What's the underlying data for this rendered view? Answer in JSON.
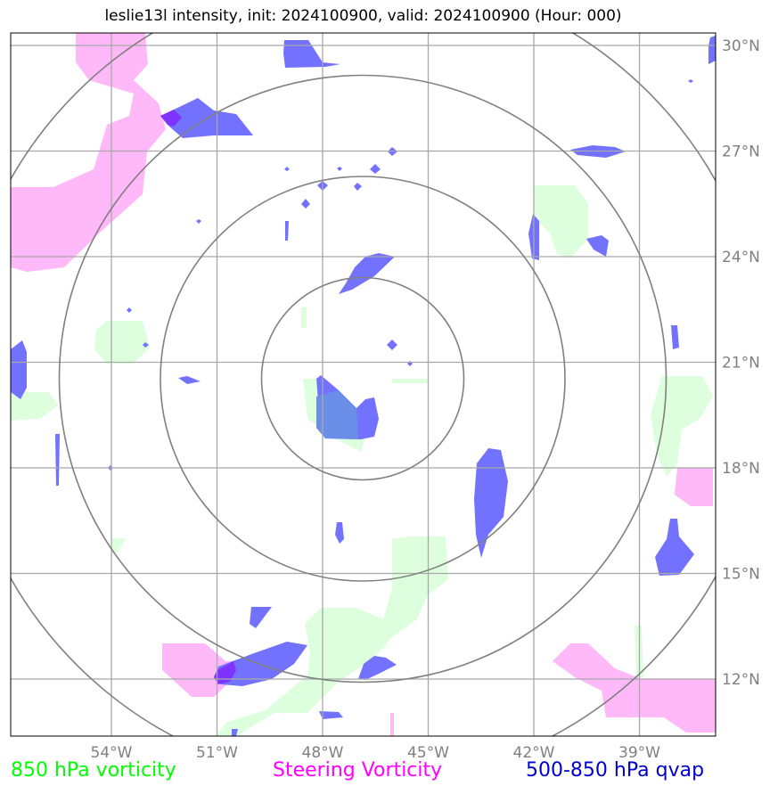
{
  "title": "leslie13l intensity, init: 2024100900, valid: 2024100900 (Hour: 000)",
  "map": {
    "lon_ticks": [
      {
        "lon": -54,
        "label": "54°W"
      },
      {
        "lon": -51,
        "label": "51°W"
      },
      {
        "lon": -48,
        "label": "48°W"
      },
      {
        "lon": -45,
        "label": "45°W"
      },
      {
        "lon": -42,
        "label": "42°W"
      },
      {
        "lon": -39,
        "label": "39°W"
      }
    ],
    "lat_ticks": [
      {
        "lat": 30,
        "label": "30°N"
      },
      {
        "lat": 27,
        "label": "27°N"
      },
      {
        "lat": 24,
        "label": "24°N"
      },
      {
        "lat": 21,
        "label": "21°N"
      },
      {
        "lat": 18,
        "label": "18°N"
      },
      {
        "lat": 15,
        "label": "15°N"
      },
      {
        "lat": 12,
        "label": "12°N"
      }
    ],
    "range_ring_count": 4,
    "colors": {
      "vorticity_850": "#00ff00",
      "steering_vorticity": "#ff00ff",
      "qvap": "#0000cc",
      "vort_fill": "#ddffdd",
      "steer_fill": "#ffb8f8",
      "qvap_fill": "#7272ff",
      "grid": "#a8a8a8",
      "ring": "#808080"
    }
  },
  "legend": [
    {
      "label": "850 hPa vorticity",
      "color": "#00ff00"
    },
    {
      "label": "Steering Vorticity",
      "color": "#ff00ff"
    },
    {
      "label": "500-850 hPa qvap",
      "color": "#0000cc"
    }
  ]
}
